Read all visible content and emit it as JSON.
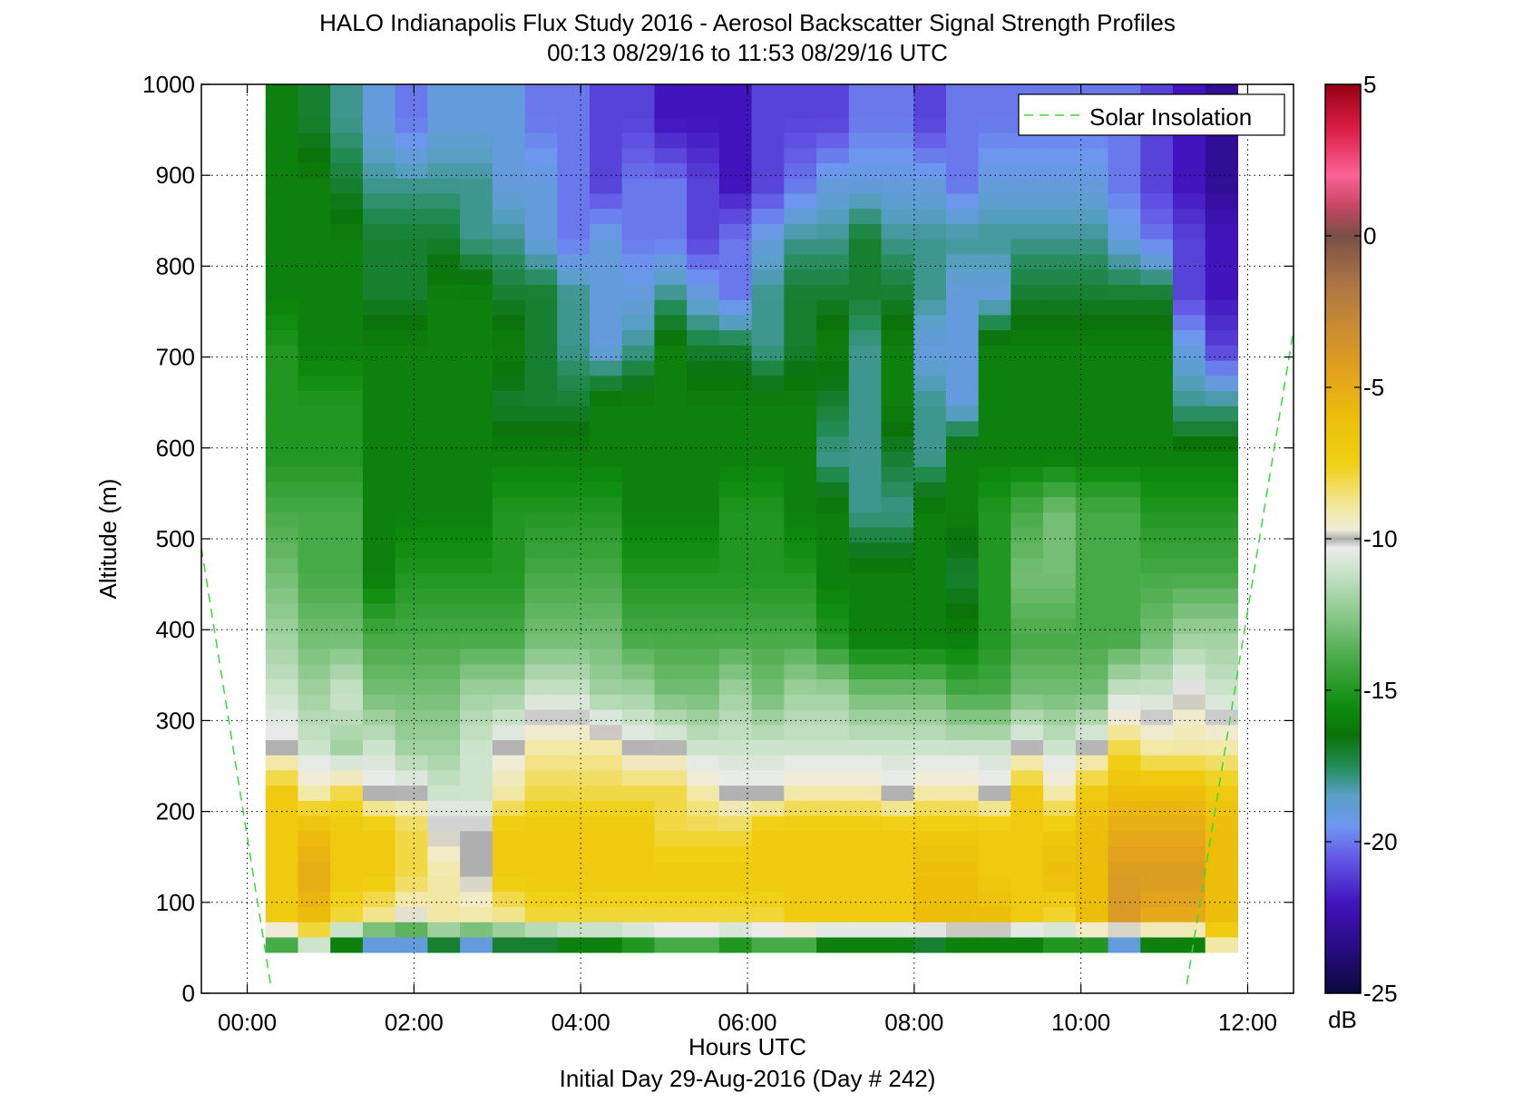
{
  "chart_data": {
    "type": "heatmap",
    "title": "HALO Indianapolis Flux Study 2016 - Aerosol Backscatter Signal Strength Profiles",
    "subtitle": "00:13 08/29/16 to 11:53 08/29/16  UTC",
    "xlabel": "Hours UTC",
    "xlabel2": "Initial Day 29-Aug-2016 (Day # 242)",
    "ylabel": "Altitude (m)",
    "colorbar_label": "dB",
    "xlim": [
      -0.55,
      12.55
    ],
    "ylim": [
      0,
      1000
    ],
    "xticks": [
      0,
      2,
      4,
      6,
      8,
      10,
      12
    ],
    "xtick_labels": [
      "00:00",
      "02:00",
      "04:00",
      "06:00",
      "08:00",
      "10:00",
      "12:00"
    ],
    "yticks": [
      0,
      100,
      200,
      300,
      400,
      500,
      600,
      700,
      800,
      900,
      1000
    ],
    "ytick_labels": [
      "0",
      "100",
      "200",
      "300",
      "400",
      "500",
      "600",
      "700",
      "800",
      "900",
      "1000"
    ],
    "clim": [
      -25,
      5
    ],
    "cticks": [
      5,
      0,
      -5,
      -10,
      -15,
      -20,
      -25
    ],
    "ctick_labels": [
      "5",
      "0",
      "-5",
      "-10",
      "-15",
      "-20",
      "-25"
    ],
    "grid": true,
    "legend": {
      "entries": [
        "Solar Insolation"
      ],
      "placement": "top-right"
    },
    "data_time_range_hours": [
      0.22,
      11.88
    ],
    "data_alt_range_m": [
      45,
      1000
    ],
    "cell_height_m": 16.7,
    "solar_insolation": [
      {
        "x": [
          -0.55,
          0.28
        ],
        "y": [
          490,
          10
        ]
      },
      {
        "x": [
          11.27,
          12.55
        ],
        "y": [
          10,
          730
        ]
      }
    ],
    "layers": [
      {
        "alt": [
          45,
          62
        ],
        "dB": [
          -14,
          -11,
          -16,
          -19,
          -19,
          -17,
          -19,
          -17,
          -17,
          -16,
          -16,
          -15,
          -14,
          -14,
          -15,
          -14,
          -14,
          -16,
          -16,
          -16,
          -17,
          -16,
          -16,
          -16,
          -15,
          -15,
          -19,
          -16,
          -16,
          -9
        ]
      },
      {
        "alt": [
          62,
          100
        ],
        "dB": [
          -7,
          -6,
          -8,
          -9,
          -10,
          -9,
          -9,
          -9,
          -8,
          -8,
          -8,
          -8,
          -8,
          -8,
          -8,
          -8,
          -7,
          -7,
          -7,
          -7,
          -6,
          -6,
          -6,
          -7,
          -8,
          -6,
          -4,
          -5,
          -5,
          -6
        ]
      },
      {
        "alt": [
          100,
          160
        ],
        "dB": [
          -7,
          -5,
          -7,
          -7,
          -8,
          -9,
          -10,
          -7,
          -7,
          -7,
          -7,
          -7,
          -7,
          -7,
          -7,
          -7,
          -7,
          -7,
          -7,
          -7,
          -6,
          -6,
          -7,
          -7,
          -6,
          -6,
          -4,
          -4,
          -4,
          -6
        ]
      },
      {
        "alt": [
          160,
          200
        ],
        "dB": [
          -7,
          -6,
          -7,
          -7,
          -8,
          -10,
          -10,
          -7,
          -7,
          -7,
          -7,
          -7,
          -8,
          -8,
          -8,
          -7,
          -7,
          -7,
          -7,
          -7,
          -7,
          -7,
          -7,
          -7,
          -7,
          -6,
          -5,
          -5,
          -5,
          -6
        ]
      },
      {
        "alt": [
          200,
          240
        ],
        "dB": [
          -7,
          -9,
          -8,
          -10,
          -10,
          -11,
          -11,
          -9,
          -8,
          -8,
          -8,
          -8,
          -8,
          -9,
          -10,
          -10,
          -9,
          -9,
          -9,
          -10,
          -9,
          -9,
          -10,
          -7,
          -9,
          -7,
          -6,
          -6,
          -6,
          -7
        ]
      },
      {
        "alt": [
          240,
          300
        ],
        "dB": [
          -10,
          -11,
          -12,
          -11,
          -12,
          -12,
          -11,
          -10,
          -9,
          -9,
          -9,
          -10,
          -10,
          -11,
          -11,
          -11,
          -11,
          -11,
          -11,
          -11,
          -11,
          -11,
          -11,
          -10,
          -11,
          -10,
          -8,
          -9,
          -9,
          -9
        ]
      },
      {
        "alt": [
          300,
          360
        ],
        "dB": [
          -11,
          -12,
          -11,
          -13,
          -13,
          -13,
          -12,
          -12,
          -11,
          -11,
          -12,
          -12,
          -13,
          -13,
          -12,
          -13,
          -12,
          -12,
          -13,
          -13,
          -13,
          -14,
          -14,
          -13,
          -13,
          -13,
          -11,
          -11,
          -10,
          -11
        ]
      },
      {
        "alt": [
          360,
          420
        ],
        "dB": [
          -12,
          -13,
          -13,
          -14,
          -14,
          -14,
          -14,
          -14,
          -13,
          -13,
          -13,
          -14,
          -14,
          -14,
          -14,
          -14,
          -14,
          -15,
          -16,
          -16,
          -16,
          -16,
          -15,
          -14,
          -14,
          -14,
          -14,
          -13,
          -12,
          -12
        ]
      },
      {
        "alt": [
          420,
          500
        ],
        "dB": [
          -13,
          -14,
          -14,
          -16,
          -15,
          -15,
          -15,
          -15,
          -14,
          -14,
          -14,
          -15,
          -15,
          -15,
          -15,
          -15,
          -15,
          -16,
          -16,
          -16,
          -16,
          -17,
          -15,
          -13,
          -13,
          -14,
          -14,
          -14,
          -14,
          -14
        ]
      },
      {
        "alt": [
          500,
          560
        ],
        "dB": [
          -14,
          -14,
          -14,
          -16,
          -16,
          -16,
          -16,
          -15,
          -15,
          -15,
          -15,
          -16,
          -16,
          -16,
          -15,
          -15,
          -16,
          -16,
          -18,
          -18,
          -16,
          -16,
          -15,
          -14,
          -13,
          -14,
          -14,
          -15,
          -15,
          -15
        ]
      },
      {
        "alt": [
          560,
          620
        ],
        "dB": [
          -15,
          -15,
          -15,
          -16,
          -16,
          -16,
          -16,
          -16,
          -16,
          -16,
          -16,
          -16,
          -16,
          -16,
          -16,
          -16,
          -16,
          -18,
          -18,
          -17,
          -18,
          -16,
          -16,
          -16,
          -16,
          -16,
          -16,
          -16,
          -16,
          -16
        ]
      },
      {
        "alt": [
          620,
          680
        ],
        "dB": [
          -15,
          -15,
          -15,
          -16,
          -16,
          -16,
          -16,
          -17,
          -17,
          -17,
          -16,
          -16,
          -16,
          -16,
          -16,
          -16,
          -16,
          -17,
          -18,
          -16,
          -18,
          -19,
          -16,
          -16,
          -16,
          -16,
          -16,
          -16,
          -18,
          -18
        ]
      },
      {
        "alt": [
          680,
          740
        ],
        "dB": [
          -15,
          -16,
          -16,
          -16,
          -16,
          -16,
          -16,
          -16,
          -17,
          -18,
          -19,
          -18,
          -16,
          -17,
          -17,
          -18,
          -17,
          -16,
          -18,
          -16,
          -19,
          -19,
          -16,
          -16,
          -16,
          -16,
          -16,
          -16,
          -19,
          -21
        ]
      },
      {
        "alt": [
          740,
          800
        ],
        "dB": [
          -16,
          -16,
          -16,
          -17,
          -17,
          -16,
          -16,
          -17,
          -17,
          -18,
          -19,
          -19,
          -18,
          -19,
          -20,
          -18,
          -17,
          -17,
          -17,
          -17,
          -18,
          -19,
          -19,
          -17,
          -17,
          -17,
          -17,
          -17,
          -21,
          -22
        ]
      },
      {
        "alt": [
          800,
          860
        ],
        "dB": [
          -16,
          -16,
          -16,
          -17,
          -17,
          -17,
          -18,
          -18,
          -19,
          -20,
          -19,
          -20,
          -20,
          -21,
          -20,
          -19,
          -18,
          -18,
          -17,
          -18,
          -18,
          -18,
          -18,
          -18,
          -18,
          -18,
          -19,
          -20,
          -21,
          -22
        ]
      },
      {
        "alt": [
          860,
          920
        ],
        "dB": [
          -16,
          -16,
          -17,
          -18,
          -18,
          -18,
          -18,
          -19,
          -19,
          -20,
          -21,
          -20,
          -20,
          -21,
          -22,
          -21,
          -20,
          -19,
          -19,
          -19,
          -19,
          -20,
          -19,
          -19,
          -19,
          -19,
          -20,
          -21,
          -22,
          -23
        ]
      },
      {
        "alt": [
          920,
          1000
        ],
        "dB": [
          -16,
          -17,
          -18,
          -19,
          -20,
          -19,
          -19,
          -19,
          -20,
          -20,
          -21,
          -21,
          -22,
          -22,
          -22,
          -21,
          -21,
          -21,
          -20,
          -20,
          -21,
          -20,
          -20,
          -20,
          -20,
          -20,
          -20,
          -21,
          -22,
          -23
        ]
      }
    ]
  }
}
